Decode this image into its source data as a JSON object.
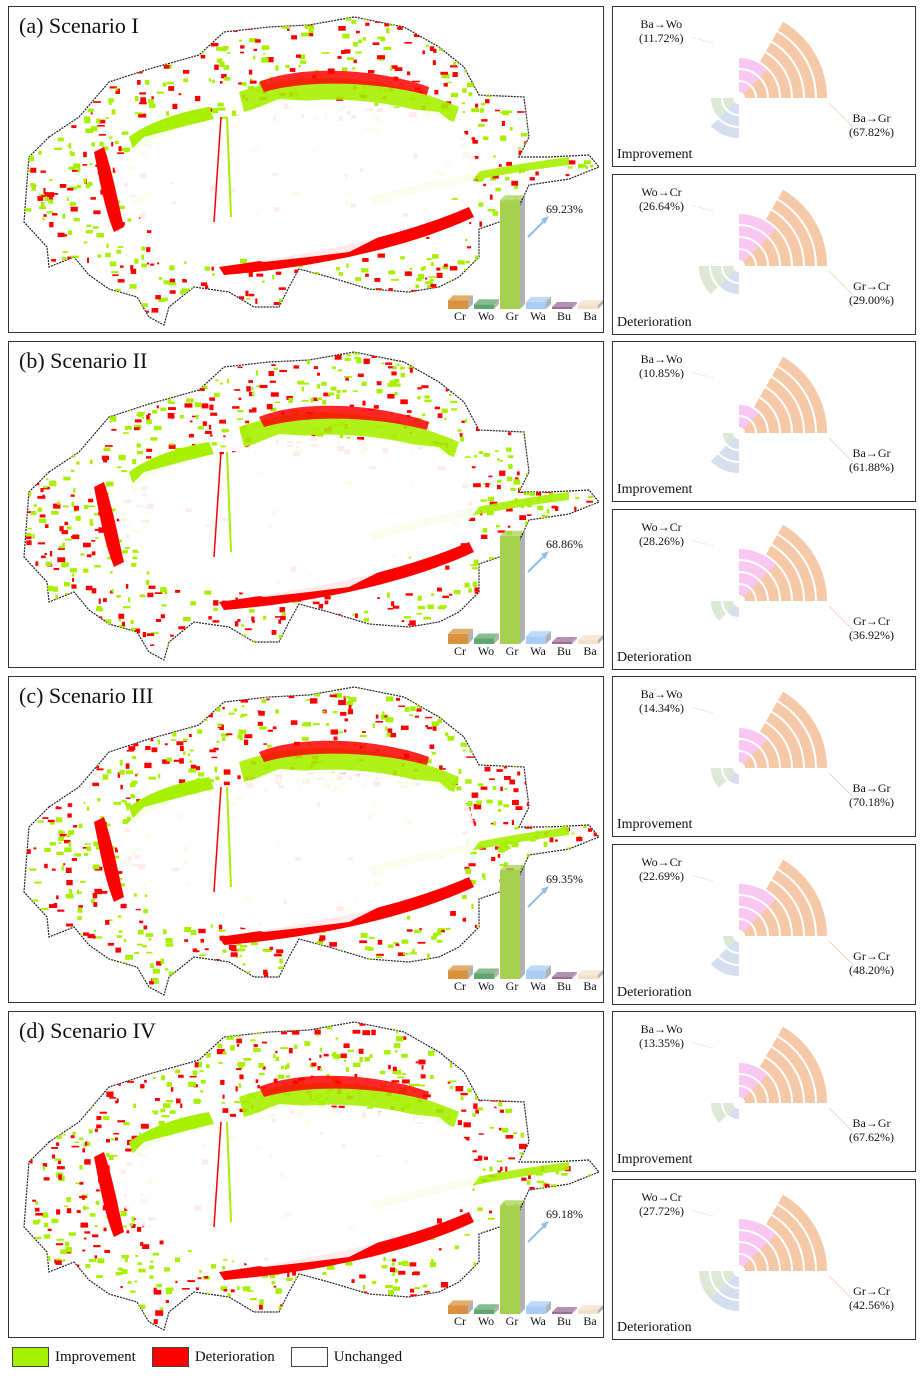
{
  "colors": {
    "improvement": "#a6f000",
    "deterioration": "#ff0000",
    "unchanged": "#ffffff",
    "rose": {
      "Gr": "#f5c9a8",
      "Wo": "#f8c8f2",
      "Cr": "#dde9d4",
      "Wa": "#d5dff0"
    },
    "bars": {
      "Cr": "#d9913d",
      "Wo": "#5ea66d",
      "Gr": "#a6d14f",
      "Wa": "#aacdf5",
      "Bu": "#9b6c96",
      "Ba": "#f3e0c8"
    }
  },
  "legend": [
    {
      "label": "Improvement",
      "key": "improvement"
    },
    {
      "label": "Deterioration",
      "key": "deterioration"
    },
    {
      "label": "Unchanged",
      "key": "unchanged"
    }
  ],
  "chart_data": [
    {
      "type": "bar",
      "panel": "(a) Scenario I",
      "categories": [
        "Cr",
        "Wo",
        "Gr",
        "Wa",
        "Bu",
        "Ba"
      ],
      "values": [
        5.5,
        3.0,
        69.23,
        4.5,
        0.8,
        2.5
      ],
      "annotation": "69.23%",
      "improvement": {
        "caption": "Improvement",
        "major": {
          "label": "Ba→Gr",
          "value": "(67.82%)"
        },
        "minor": {
          "label": "Ba→Wo",
          "value": "(11.72%)"
        },
        "rings": {
          "Gr": 7,
          "Wo": 3,
          "Cr": 2,
          "Wa": 3
        }
      },
      "deterioration": {
        "caption": "Deterioration",
        "major": {
          "label": "Gr→Cr",
          "value": "(29.00%)"
        },
        "minor": {
          "label": "Wo→Cr",
          "value": "(26.64%)"
        },
        "rings": {
          "Gr": 7,
          "Wo": 4,
          "Cr": 3,
          "Wa": 2
        }
      }
    },
    {
      "type": "bar",
      "panel": "(b) Scenario II",
      "categories": [
        "Cr",
        "Wo",
        "Gr",
        "Wa",
        "Bu",
        "Ba"
      ],
      "values": [
        6.5,
        3.5,
        68.86,
        5.0,
        0.8,
        2.5
      ],
      "annotation": "68.86%",
      "improvement": {
        "caption": "Improvement",
        "major": {
          "label": "Ba→Gr",
          "value": "(61.88%)"
        },
        "minor": {
          "label": "Ba→Wo",
          "value": "(10.85%)"
        },
        "rings": {
          "Gr": 7,
          "Wo": 2,
          "Cr": 1,
          "Wa": 3
        }
      },
      "deterioration": {
        "caption": "Deterioration",
        "major": {
          "label": "Gr→Cr",
          "value": "(36.92%)"
        },
        "minor": {
          "label": "Wo→Cr",
          "value": "(28.26%)"
        },
        "rings": {
          "Gr": 7,
          "Wo": 4,
          "Cr": 2,
          "Wa": 1
        }
      }
    },
    {
      "type": "bar",
      "panel": "(c) Scenario III",
      "categories": [
        "Cr",
        "Wo",
        "Gr",
        "Wa",
        "Bu",
        "Ba"
      ],
      "values": [
        5.5,
        3.5,
        69.35,
        5.5,
        0.8,
        2.5
      ],
      "annotation": "69.35%",
      "improvement": {
        "caption": "Improvement",
        "major": {
          "label": "Ba→Gr",
          "value": "(70.18%)"
        },
        "minor": {
          "label": "Ba→Wo",
          "value": "(14.34%)"
        },
        "rings": {
          "Gr": 7,
          "Wo": 3,
          "Cr": 2,
          "Wa": 1
        }
      },
      "deterioration": {
        "caption": "Deterioration",
        "major": {
          "label": "Gr→Cr",
          "value": "(48.20%)"
        },
        "minor": {
          "label": "Wo→Cr",
          "value": "(22.69%)"
        },
        "rings": {
          "Gr": 7,
          "Wo": 4,
          "Cr": 1,
          "Wa": 3
        }
      }
    },
    {
      "type": "bar",
      "panel": "(d) Scenario IV",
      "categories": [
        "Cr",
        "Wo",
        "Gr",
        "Wa",
        "Bu",
        "Ba"
      ],
      "values": [
        5.5,
        3.0,
        69.18,
        5.0,
        0.8,
        2.5
      ],
      "annotation": "69.18%",
      "improvement": {
        "caption": "Improvement",
        "major": {
          "label": "Ba→Gr",
          "value": "(67.62%)"
        },
        "minor": {
          "label": "Ba→Wo",
          "value": "(13.35%)"
        },
        "rings": {
          "Gr": 7,
          "Wo": 3,
          "Cr": 2,
          "Wa": 1
        }
      },
      "deterioration": {
        "caption": "Deterioration",
        "major": {
          "label": "Gr→Cr",
          "value": "(42.56%)"
        },
        "minor": {
          "label": "Wo→Cr",
          "value": "(27.72%)"
        },
        "rings": {
          "Gr": 7,
          "Wo": 4,
          "Cr": 3,
          "Wa": 3
        }
      }
    }
  ]
}
